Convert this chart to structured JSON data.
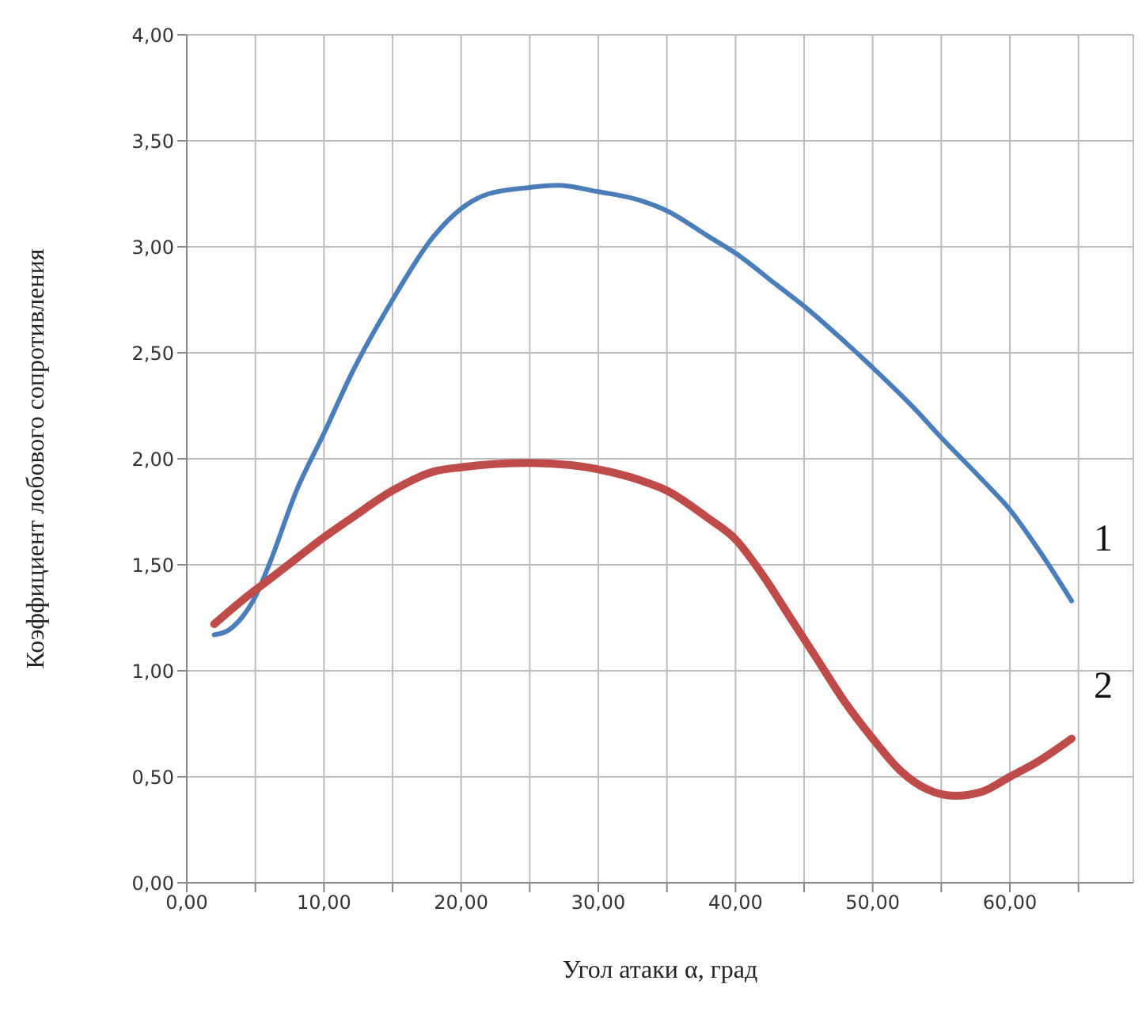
{
  "chart_data": {
    "type": "line",
    "xlabel": "Угол атаки  α, град",
    "ylabel": "Коэффициент лобового сопротивления",
    "xlim": [
      0,
      69
    ],
    "xticks": [
      {
        "value": 0,
        "label": "0,00"
      },
      {
        "value": 5,
        "label": null
      },
      {
        "value": 10,
        "label": "10,00"
      },
      {
        "value": 15,
        "label": null
      },
      {
        "value": 20,
        "label": "20,00"
      },
      {
        "value": 25,
        "label": null
      },
      {
        "value": 30,
        "label": "30,00"
      },
      {
        "value": 35,
        "label": null
      },
      {
        "value": 40,
        "label": "40,00"
      },
      {
        "value": 45,
        "label": null
      },
      {
        "value": 50,
        "label": "50,00"
      },
      {
        "value": 55,
        "label": null
      },
      {
        "value": 60,
        "label": "60,00"
      },
      {
        "value": 65,
        "label": null
      }
    ],
    "ylim": [
      0,
      4
    ],
    "yticks": [
      {
        "value": 0,
        "label": "0,00"
      },
      {
        "value": 0.5,
        "label": "0,50"
      },
      {
        "value": 1,
        "label": "1,00"
      },
      {
        "value": 1.5,
        "label": "1,50"
      },
      {
        "value": 2,
        "label": "2,00"
      },
      {
        "value": 2.5,
        "label": "2,50"
      },
      {
        "value": 3,
        "label": "3,00"
      },
      {
        "value": 3.5,
        "label": "3,50"
      },
      {
        "value": 4,
        "label": "4,00"
      }
    ],
    "grid": true,
    "marker": "none",
    "line_style": "solid",
    "series": [
      {
        "name": "1",
        "color": "#4a7ebb",
        "x": [
          2,
          3,
          4,
          5,
          6,
          8,
          10,
          12,
          15,
          18,
          20,
          22,
          25,
          27,
          30,
          33,
          35,
          38,
          40,
          43,
          45,
          48,
          50,
          53,
          55,
          58,
          60,
          62,
          64.5
        ],
        "values": [
          1.17,
          1.19,
          1.25,
          1.35,
          1.5,
          1.85,
          2.12,
          2.4,
          2.75,
          3.05,
          3.18,
          3.25,
          3.28,
          3.29,
          3.26,
          3.22,
          3.17,
          3.05,
          2.97,
          2.82,
          2.72,
          2.55,
          2.43,
          2.24,
          2.1,
          1.9,
          1.76,
          1.58,
          1.33
        ]
      },
      {
        "name": "2",
        "color": "#be4b48",
        "x": [
          2,
          4,
          6,
          8,
          10,
          12,
          15,
          18,
          20,
          25,
          28,
          30,
          33,
          35,
          38,
          40,
          42,
          44,
          46,
          48,
          50,
          52,
          54,
          56,
          58,
          60,
          62,
          64.5
        ],
        "values": [
          1.22,
          1.33,
          1.43,
          1.53,
          1.63,
          1.72,
          1.85,
          1.94,
          1.96,
          1.98,
          1.97,
          1.95,
          1.9,
          1.85,
          1.72,
          1.62,
          1.45,
          1.25,
          1.05,
          0.85,
          0.68,
          0.53,
          0.44,
          0.41,
          0.43,
          0.5,
          0.57,
          0.68
        ]
      }
    ]
  }
}
